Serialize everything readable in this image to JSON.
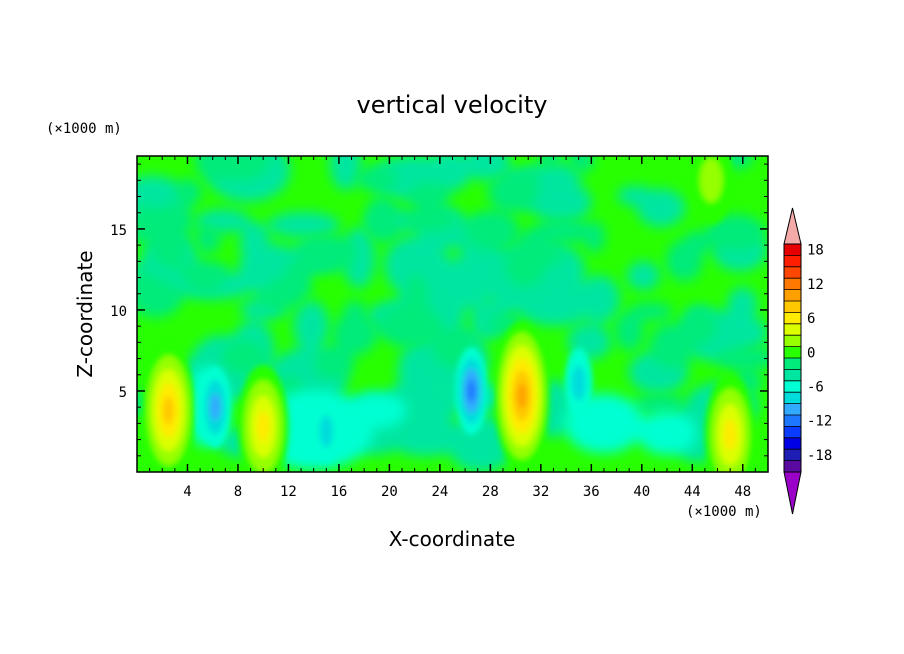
{
  "chart_data": {
    "type": "heatmap",
    "title": "vertical velocity",
    "xlabel": "X-coordinate",
    "ylabel": "Z-coordinate",
    "x_unit": "(×1000 m)",
    "y_unit": "(×1000 m)",
    "xlim": [
      0,
      50
    ],
    "ylim": [
      0,
      19.5
    ],
    "xticks": [
      4,
      8,
      12,
      16,
      20,
      24,
      28,
      32,
      36,
      40,
      44,
      48
    ],
    "yticks": [
      5,
      10,
      15
    ],
    "colorbar": {
      "ticks": [
        18,
        12,
        6,
        0,
        -6,
        -12,
        -18
      ],
      "levels": [
        -20,
        -18,
        -16,
        -14,
        -12,
        -10,
        -8,
        -6,
        -4,
        -2,
        0,
        2,
        4,
        6,
        8,
        10,
        12,
        14,
        16,
        18,
        20
      ],
      "colors": [
        "#9b00c8",
        "#5a0aa0",
        "#1e1eb4",
        "#0000e6",
        "#0a3cff",
        "#1e78ff",
        "#32aaff",
        "#00dcdc",
        "#00ffd2",
        "#00e6a0",
        "#00eb7a",
        "#28ff00",
        "#96ff00",
        "#dcff00",
        "#ffeb00",
        "#ffc800",
        "#ffa000",
        "#ff7800",
        "#ff4600",
        "#ff1e00",
        "#e60000",
        "#f5aaaa"
      ],
      "over_color": "#f5aaaa",
      "under_color": "#9b00c8"
    },
    "features": [
      {
        "x": 2.5,
        "z": 3.8,
        "value": 11
      },
      {
        "x": 10.0,
        "z": 2.8,
        "value": 9
      },
      {
        "x": 30.5,
        "z": 4.7,
        "value": 13
      },
      {
        "x": 47.0,
        "z": 2.3,
        "value": 9
      },
      {
        "x": 6.2,
        "z": 4.0,
        "value": -7
      },
      {
        "x": 26.5,
        "z": 5.0,
        "value": -8
      },
      {
        "x": 35.0,
        "z": 5.5,
        "value": -5
      },
      {
        "x": 15.0,
        "z": 2.5,
        "value": -4
      },
      {
        "x": 45.5,
        "z": 18.0,
        "value": 4
      }
    ]
  }
}
